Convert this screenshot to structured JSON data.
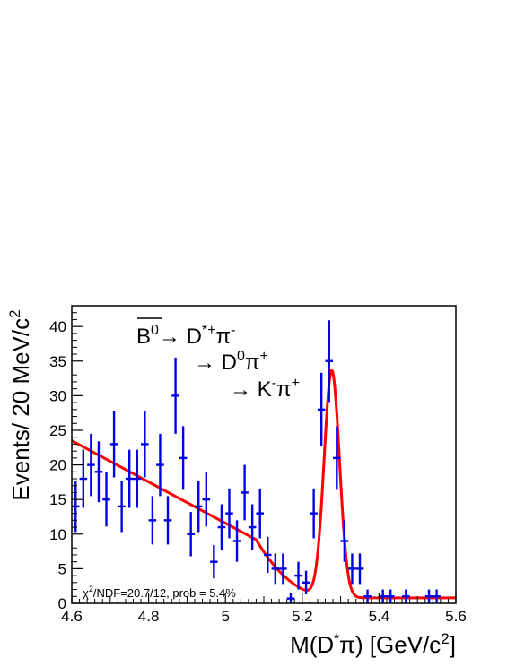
{
  "chart_data": {
    "type": "scatter",
    "title": "",
    "xlabel": "M(D",
    "xlabel_star": "*",
    "xlabel_pi": "π) [GeV/c",
    "xlabel_sup": "2",
    "xlabel_close": "]",
    "ylabel": "Events/ 20 MeV/c",
    "ylabel_sup": "2",
    "xlim": [
      4.6,
      5.6
    ],
    "ylim": [
      0,
      43
    ],
    "x_ticks": [
      "4.6",
      "4.8",
      "5",
      "5.2",
      "5.4",
      "5.6"
    ],
    "y_ticks": [
      "0",
      "5",
      "10",
      "15",
      "20",
      "25",
      "30",
      "35",
      "40"
    ],
    "series": [
      {
        "kind": "data-points-with-errors",
        "color": "#0000e6",
        "x": [
          4.61,
          4.63,
          4.65,
          4.67,
          4.69,
          4.71,
          4.73,
          4.75,
          4.77,
          4.79,
          4.81,
          4.83,
          4.85,
          4.87,
          4.89,
          4.91,
          4.93,
          4.95,
          4.97,
          4.99,
          5.01,
          5.03,
          5.05,
          5.07,
          5.09,
          5.11,
          5.13,
          5.15,
          5.17,
          5.19,
          5.21,
          5.23,
          5.25,
          5.27,
          5.29,
          5.31,
          5.33,
          5.35,
          5.37,
          5.41,
          5.43,
          5.47,
          5.53,
          5.55
        ],
        "y": [
          14,
          18,
          20,
          19,
          15,
          23,
          14,
          18,
          18,
          23,
          12,
          20,
          12,
          30,
          21,
          10,
          14,
          15,
          6,
          11,
          13,
          9,
          16,
          11,
          13,
          7,
          5,
          5,
          0.7,
          4,
          3,
          13,
          28,
          35,
          21,
          9,
          5,
          5,
          1,
          1,
          1,
          1,
          1,
          1
        ],
        "yerr": [
          3.7,
          4.2,
          4.5,
          4.4,
          3.9,
          4.8,
          3.7,
          4.2,
          4.2,
          4.8,
          3.5,
          4.5,
          3.5,
          5.5,
          4.6,
          3.2,
          3.7,
          3.9,
          2.4,
          3.3,
          3.6,
          3.0,
          4.0,
          3.3,
          3.6,
          2.6,
          2.2,
          2.2,
          0.8,
          2.0,
          1.7,
          3.6,
          5.3,
          5.9,
          4.6,
          3.0,
          2.2,
          2.2,
          1.0,
          1.0,
          1.0,
          1.0,
          1.0,
          1.0
        ]
      },
      {
        "kind": "fit-curve",
        "color": "#ff0000",
        "background": {
          "slope_per_gev": -29.8,
          "value_at_4p6": 22.7,
          "endpoint": 5.29,
          "power": 0.5,
          "constant": 0.8
        },
        "signal": {
          "mean": 5.277,
          "sigma": 0.02,
          "peak": 32.8
        }
      }
    ],
    "decay_lines": [
      {
        "parts": [
          "B",
          "0",
          "→ D",
          "*+",
          "π",
          "-"
        ]
      },
      {
        "parts": [
          "→ D",
          "0",
          "π",
          "+"
        ]
      },
      {
        "parts": [
          "→ K",
          "-",
          "π",
          "+"
        ]
      }
    ],
    "fit_label": "χ",
    "fit_label_sup": "2",
    "fit_label_rest": "/NDF=20.7/12, prob = 5.4%"
  }
}
